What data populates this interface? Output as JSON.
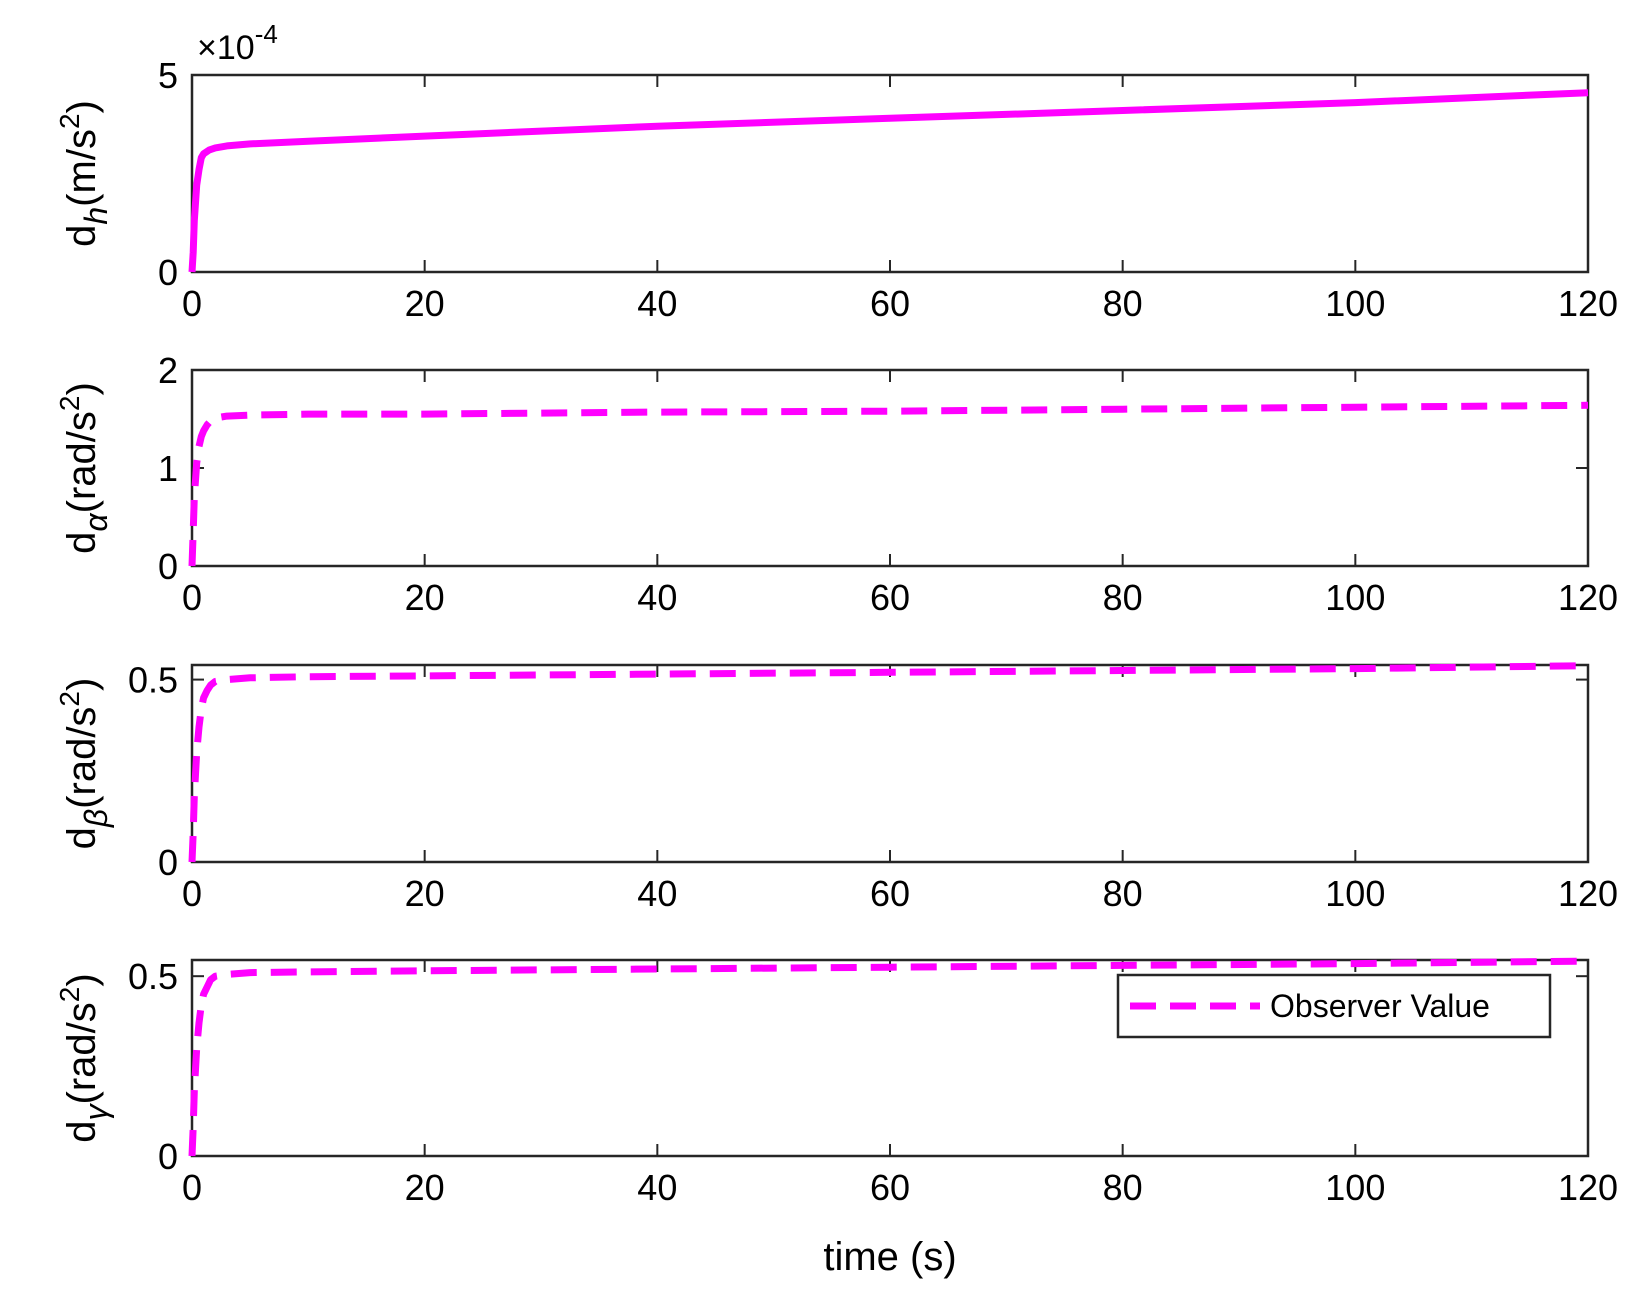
{
  "chart_data": [
    {
      "type": "line",
      "ylabel": {
        "base": "d",
        "sub": "h",
        "unit_pre": "(m/s",
        "unit_sup": "2",
        "unit_post": ")"
      },
      "xlim": [
        0,
        120
      ],
      "ylim": [
        0,
        5
      ],
      "y_multiplier_label": {
        "prefix": "×10",
        "sup": "-4"
      },
      "xticks": [
        "0",
        "20",
        "40",
        "60",
        "80",
        "100",
        "120"
      ],
      "yticks": [
        "0",
        "5"
      ],
      "series": [
        {
          "color": "#ff00ff",
          "style": "solid",
          "x": [
            0,
            0.1,
            0.2,
            0.4,
            0.6,
            0.8,
            1.0,
            1.5,
            2,
            3,
            5,
            10,
            20,
            40,
            60,
            80,
            100,
            120
          ],
          "y": [
            0,
            0.5,
            1.3,
            2.2,
            2.6,
            2.9,
            3.0,
            3.1,
            3.15,
            3.2,
            3.25,
            3.32,
            3.45,
            3.7,
            3.9,
            4.1,
            4.3,
            4.55
          ]
        }
      ]
    },
    {
      "type": "line",
      "ylabel": {
        "base": "d",
        "sub": "α",
        "unit_pre": "(rad/s",
        "unit_sup": "2",
        "unit_post": ")"
      },
      "xlim": [
        0,
        120
      ],
      "ylim": [
        0,
        2
      ],
      "xticks": [
        "0",
        "20",
        "40",
        "60",
        "80",
        "100",
        "120"
      ],
      "yticks": [
        "0",
        "1",
        "2"
      ],
      "series": [
        {
          "color": "#ff00ff",
          "style": "dashed",
          "x": [
            0,
            0.1,
            0.2,
            0.4,
            0.6,
            0.8,
            1.0,
            1.3,
            1.6,
            2,
            3,
            5,
            10,
            20,
            40,
            60,
            80,
            100,
            120
          ],
          "y": [
            0,
            0.35,
            0.7,
            1.05,
            1.22,
            1.32,
            1.38,
            1.44,
            1.48,
            1.51,
            1.53,
            1.54,
            1.55,
            1.55,
            1.57,
            1.58,
            1.6,
            1.62,
            1.64
          ]
        }
      ]
    },
    {
      "type": "line",
      "ylabel": {
        "base": "d",
        "sub": "β",
        "unit_pre": "(rad/s",
        "unit_sup": "2",
        "unit_post": ")"
      },
      "xlim": [
        0,
        120
      ],
      "ylim": [
        0,
        0.54
      ],
      "xticks": [
        "0",
        "20",
        "40",
        "60",
        "80",
        "100",
        "120"
      ],
      "yticks": [
        "0",
        "0.5"
      ],
      "series": [
        {
          "color": "#ff00ff",
          "style": "dashed",
          "x": [
            0,
            0.1,
            0.2,
            0.4,
            0.6,
            0.8,
            1.0,
            1.3,
            1.6,
            2,
            3,
            5,
            10,
            20,
            40,
            60,
            80,
            100,
            120
          ],
          "y": [
            0,
            0.08,
            0.18,
            0.3,
            0.37,
            0.42,
            0.45,
            0.47,
            0.485,
            0.495,
            0.5,
            0.505,
            0.508,
            0.51,
            0.515,
            0.52,
            0.525,
            0.53,
            0.538
          ]
        }
      ]
    },
    {
      "type": "line",
      "ylabel": {
        "base": "d",
        "sub": "γ",
        "unit_pre": "(rad/s",
        "unit_sup": "2",
        "unit_post": ")"
      },
      "xlim": [
        0,
        120
      ],
      "ylim": [
        0,
        0.545
      ],
      "xticks": [
        "0",
        "20",
        "40",
        "60",
        "80",
        "100",
        "120"
      ],
      "yticks": [
        "0",
        "0.5"
      ],
      "series": [
        {
          "color": "#ff00ff",
          "style": "dashed",
          "x": [
            0,
            0.1,
            0.2,
            0.4,
            0.6,
            0.8,
            1.0,
            1.3,
            1.6,
            2,
            3,
            5,
            10,
            20,
            40,
            60,
            80,
            100,
            120
          ],
          "y": [
            0,
            0.08,
            0.18,
            0.3,
            0.37,
            0.42,
            0.45,
            0.47,
            0.49,
            0.5,
            0.505,
            0.51,
            0.512,
            0.515,
            0.52,
            0.525,
            0.53,
            0.535,
            0.542
          ]
        }
      ],
      "legend": {
        "label": "Observer Value",
        "placement": "upper-right"
      }
    }
  ],
  "xlabel": "time (s)"
}
